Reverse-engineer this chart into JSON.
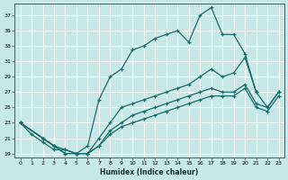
{
  "title": "",
  "xlabel": "Humidex (Indice chaleur)",
  "ylabel": "",
  "bg_color": "#c8e8e8",
  "line_color": "#1a6b6b",
  "grid_color": "#b0d0d0",
  "xlim": [
    -0.5,
    23.5
  ],
  "ylim": [
    18.5,
    38.5
  ],
  "xticks": [
    0,
    1,
    2,
    3,
    4,
    5,
    6,
    7,
    8,
    9,
    10,
    11,
    12,
    13,
    14,
    15,
    16,
    17,
    18,
    19,
    20,
    21,
    22,
    23
  ],
  "yticks": [
    19,
    21,
    23,
    25,
    27,
    29,
    31,
    33,
    35,
    37
  ],
  "line_top_x": [
    0,
    1,
    2,
    3,
    4,
    5,
    6,
    7,
    8,
    9,
    10,
    11,
    12,
    13,
    14,
    15,
    16,
    17,
    18,
    19,
    20,
    21
  ],
  "line_top_y": [
    23,
    21.5,
    20.5,
    19.5,
    19.5,
    19,
    20,
    26,
    29,
    30,
    32.5,
    33,
    34,
    34.5,
    35,
    33.5,
    37,
    38,
    34.5,
    34.5,
    32,
    27
  ],
  "line_mid1_x": [
    0,
    2,
    3,
    4,
    5,
    6,
    7,
    8,
    9,
    10,
    11,
    12,
    13,
    14,
    15,
    16,
    17,
    18,
    19,
    20,
    21,
    22,
    23
  ],
  "line_mid1_y": [
    23,
    21,
    20,
    19.5,
    19,
    19,
    21,
    23,
    25,
    25.5,
    26,
    26.5,
    27,
    27.5,
    28,
    29,
    30,
    29,
    29.5,
    31.5,
    27,
    25,
    27
  ],
  "line_mid2_x": [
    0,
    2,
    3,
    4,
    5,
    6,
    7,
    8,
    9,
    10,
    11,
    12,
    13,
    14,
    15,
    16,
    17,
    18,
    19,
    20,
    21,
    22,
    23
  ],
  "line_mid2_y": [
    23,
    21,
    20,
    19,
    19,
    19,
    20,
    22,
    23,
    24,
    24.5,
    25,
    25.5,
    26,
    26.5,
    27,
    27.5,
    27,
    27,
    28,
    25.5,
    25,
    27
  ],
  "line_bot_x": [
    0,
    2,
    3,
    4,
    5,
    6,
    7,
    8,
    9,
    10,
    11,
    12,
    13,
    14,
    15,
    16,
    17,
    18,
    19,
    20,
    21,
    22,
    23
  ],
  "line_bot_y": [
    23,
    21,
    20,
    19,
    19,
    19,
    20,
    21.5,
    22.5,
    23,
    23.5,
    24,
    24.5,
    25,
    25.5,
    26,
    26.5,
    26.5,
    26.5,
    27.5,
    25,
    24.5,
    26.5
  ]
}
